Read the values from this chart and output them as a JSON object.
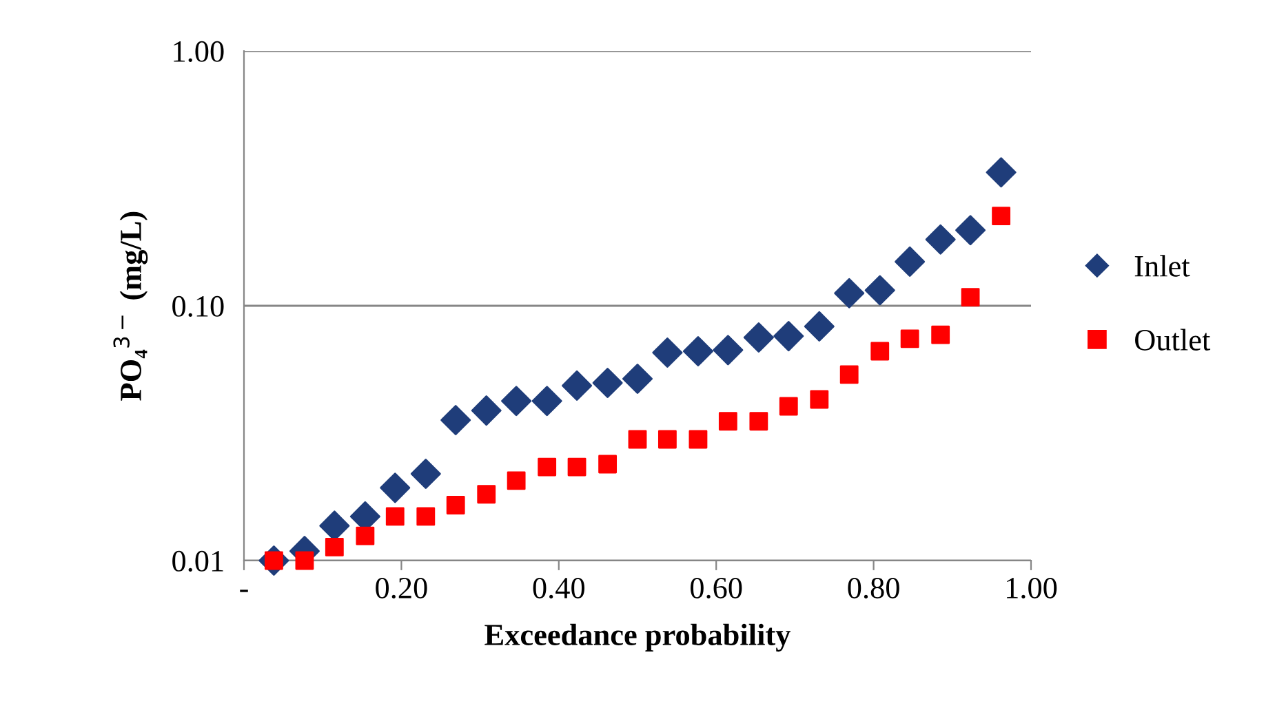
{
  "chart_data": {
    "type": "scatter",
    "xlabel": "Exceedance probability",
    "ylabel": "PO₄$^{3−}$ (mg/L)",
    "log": "y",
    "xlim": [
      0,
      1
    ],
    "xticks": [
      {
        "value": 0,
        "label": "-"
      },
      {
        "value": 0.2,
        "label": "0.20"
      },
      {
        "value": 0.4,
        "label": "0.40"
      },
      {
        "value": 0.6,
        "label": "0.60"
      },
      {
        "value": 0.8,
        "label": "0.80"
      },
      {
        "value": 1,
        "label": "1.00"
      }
    ],
    "ylim": [
      0.01,
      1
    ],
    "yticks": [
      {
        "value": 0.01,
        "label": "0.01"
      },
      {
        "value": 0.1,
        "label": "0.10"
      },
      {
        "value": 1,
        "label": "1.00"
      }
    ],
    "grid": "y",
    "legend": "right",
    "x": [
      0.038,
      0.077,
      0.115,
      0.154,
      0.192,
      0.231,
      0.269,
      0.308,
      0.346,
      0.385,
      0.423,
      0.462,
      0.5,
      0.538,
      0.577,
      0.615,
      0.654,
      0.692,
      0.731,
      0.769,
      0.808,
      0.846,
      0.885,
      0.923,
      0.962
    ],
    "series": [
      {
        "name": "Inlet",
        "color": "#1f3d7a",
        "marker": "diamond",
        "values": [
          0.01,
          0.0109,
          0.0137,
          0.0149,
          0.0193,
          0.0219,
          0.0356,
          0.0388,
          0.0423,
          0.0423,
          0.0486,
          0.0498,
          0.0517,
          0.0655,
          0.0663,
          0.067,
          0.0751,
          0.076,
          0.083,
          0.112,
          0.115,
          0.149,
          0.182,
          0.198,
          0.334
        ]
      },
      {
        "name": "Outlet",
        "color": "#ff0000",
        "marker": "square",
        "values": [
          0.01,
          0.01,
          0.0113,
          0.0125,
          0.0149,
          0.0149,
          0.0165,
          0.0182,
          0.0206,
          0.0233,
          0.0233,
          0.0239,
          0.0299,
          0.0299,
          0.0299,
          0.0352,
          0.0352,
          0.0403,
          0.0429,
          0.0537,
          0.0663,
          0.0742,
          0.0769,
          0.108,
          0.225
        ]
      }
    ]
  }
}
